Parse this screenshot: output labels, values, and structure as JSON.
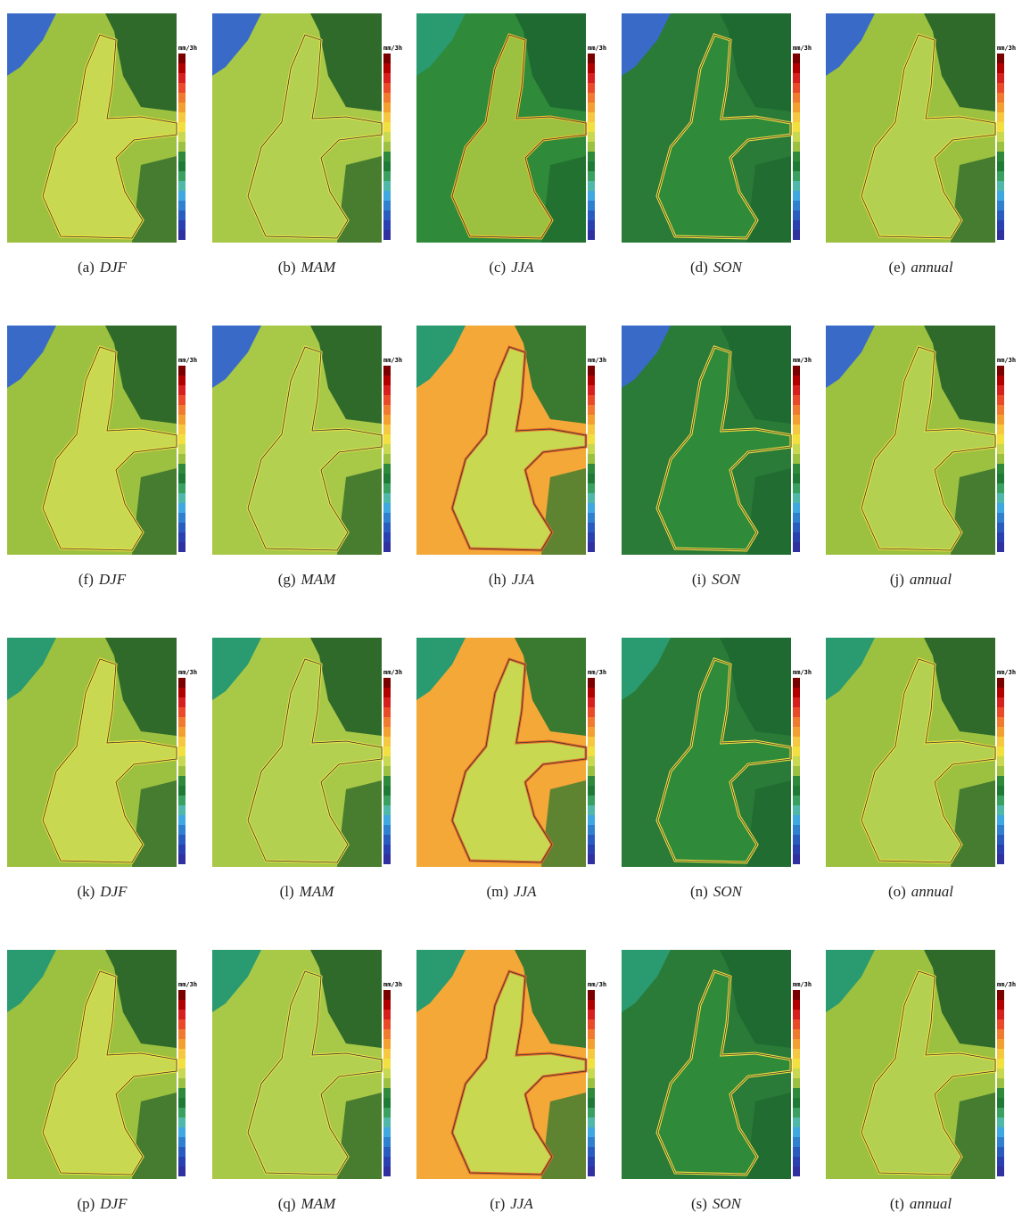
{
  "colorbar_unit": "mm/3h",
  "panels": [
    {
      "label": "(a)",
      "season": "DJF"
    },
    {
      "label": "(b)",
      "season": "MAM"
    },
    {
      "label": "(c)",
      "season": "JJA"
    },
    {
      "label": "(d)",
      "season": "SON"
    },
    {
      "label": "(e)",
      "season": "annual"
    },
    {
      "label": "(f)",
      "season": "DJF"
    },
    {
      "label": "(g)",
      "season": "MAM"
    },
    {
      "label": "(h)",
      "season": "JJA"
    },
    {
      "label": "(i)",
      "season": "SON"
    },
    {
      "label": "(j)",
      "season": "annual"
    },
    {
      "label": "(k)",
      "season": "DJF"
    },
    {
      "label": "(l)",
      "season": "MAM"
    },
    {
      "label": "(m)",
      "season": "JJA"
    },
    {
      "label": "(n)",
      "season": "SON"
    },
    {
      "label": "(o)",
      "season": "annual"
    },
    {
      "label": "(p)",
      "season": "DJF"
    },
    {
      "label": "(q)",
      "season": "MAM"
    },
    {
      "label": "(r)",
      "season": "JJA"
    },
    {
      "label": "(s)",
      "season": "SON"
    },
    {
      "label": "(t)",
      "season": "annual"
    }
  ]
}
